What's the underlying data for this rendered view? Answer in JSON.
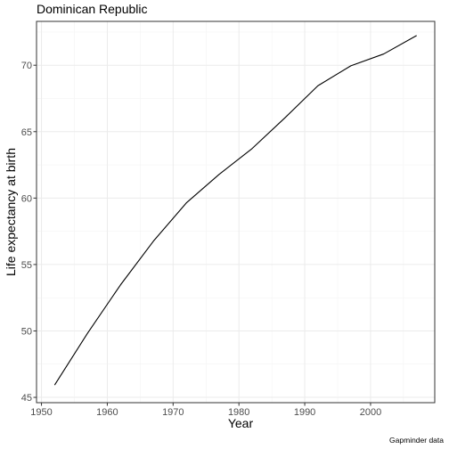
{
  "chart_data": {
    "type": "line",
    "title": "Dominican Republic",
    "xlabel": "Year",
    "ylabel": "Life expectancy at birth",
    "caption": "Gapminder data",
    "xlim": [
      1949.25,
      2009.75
    ],
    "ylim": [
      44.6,
      73.3
    ],
    "x_ticks": [
      1950,
      1960,
      1970,
      1980,
      1990,
      2000
    ],
    "y_ticks": [
      45,
      50,
      55,
      60,
      65,
      70
    ],
    "grid": true,
    "line_color": "#000000",
    "series": [
      {
        "x": [
          1952,
          1957,
          1962,
          1967,
          1972,
          1977,
          1982,
          1987,
          1992,
          1997,
          2002,
          2007
        ],
        "values": [
          45.928,
          49.828,
          53.459,
          56.751,
          59.631,
          61.788,
          63.727,
          66.046,
          68.457,
          69.957,
          70.847,
          72.235
        ]
      }
    ]
  }
}
